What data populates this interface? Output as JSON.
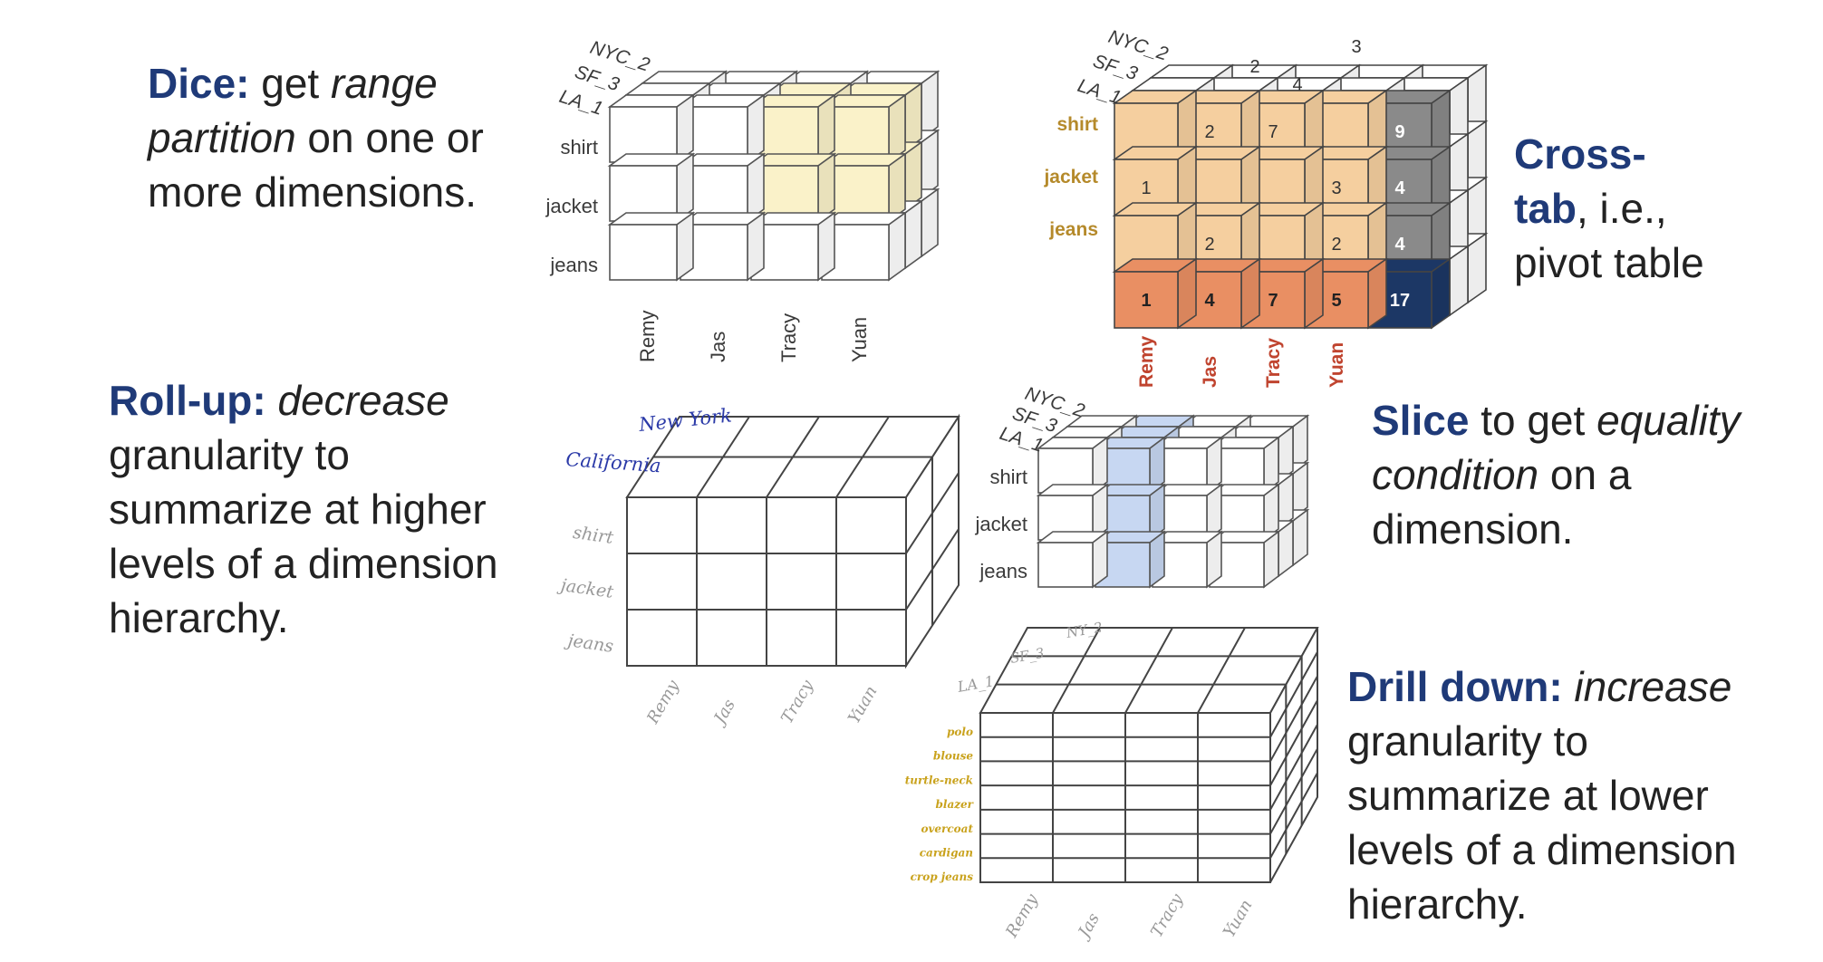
{
  "colors": {
    "heading": "#1f3a78",
    "dice_highlight": "#faf2c9",
    "slice_highlight": "#c7d7f2",
    "crosstab_cell": "#f5cf9f",
    "crosstab_total": "#e98f63",
    "crosstab_side_total": "#8a8a8a",
    "crosstab_grand_total": "#1c3765",
    "handwriting_blue": "#2b3aa8",
    "handwriting_gold": "#c9a21c"
  },
  "captions": {
    "dice": {
      "head": "Dice:",
      "p1": " get ",
      "i1": "range partition",
      "p2": " on one or more dimensions."
    },
    "crosstab": {
      "head": "Cross-tab",
      "p1": ", i.e., pivot table"
    },
    "rollup": {
      "head": "Roll-up:",
      "p1": " ",
      "i1": "decrease",
      "p2": " granularity to summarize at higher levels of a dimension hierarchy."
    },
    "slice": {
      "head": "Slice",
      "p1": " to get ",
      "i1": "equality condition",
      "p2": " on a dimension."
    },
    "drilldown": {
      "head": "Drill down:",
      "p1": " ",
      "i1": "increase",
      "p2": " granularity to summarize at lower levels of a dimension hierarchy."
    }
  },
  "cube_labels": {
    "depth": [
      "NYC_2",
      "SF_3",
      "LA_1"
    ],
    "rows": [
      "shirt",
      "jacket",
      "jeans"
    ],
    "cols": [
      "Remy",
      "Jas",
      "Tracy",
      "Yuan"
    ]
  },
  "crosstab": {
    "rows": [
      "shirt",
      "jacket",
      "jeans"
    ],
    "cols": [
      "Remy",
      "Jas",
      "Tracy",
      "Yuan"
    ],
    "cells": [
      [
        "",
        "2",
        "7",
        ""
      ],
      [
        "1",
        "",
        "",
        "3"
      ],
      [
        "",
        "2",
        "",
        "2"
      ]
    ],
    "row_totals": [
      "9",
      "4",
      "4"
    ],
    "col_totals": [
      "1",
      "4",
      "7",
      "5"
    ],
    "grand_total": "17",
    "top_face_values": [
      "3",
      "2",
      "4"
    ]
  },
  "rollup": {
    "depth": [
      "New York",
      "California"
    ],
    "rows": [
      "shirt",
      "jacket",
      "jeans"
    ],
    "cols": [
      "Remy",
      "Jas",
      "Tracy",
      "Yuan"
    ]
  },
  "drilldown": {
    "depth": [
      "NY_2",
      "SF_3",
      "LA_1"
    ],
    "rows": [
      "polo",
      "blouse",
      "turtle-neck",
      "blazer",
      "overcoat",
      "cardigan",
      "crop jeans"
    ],
    "cols": [
      "Remy",
      "Jas",
      "Tracy",
      "Yuan"
    ]
  }
}
